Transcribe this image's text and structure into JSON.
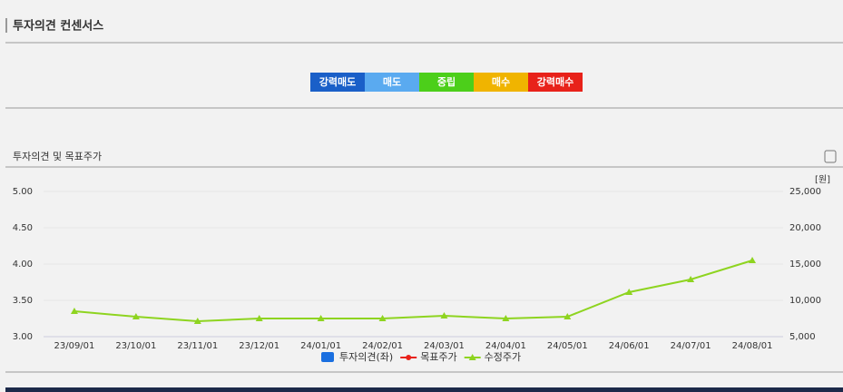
{
  "header": {
    "title": "투자의견 컨센서스"
  },
  "opinion_scale": [
    {
      "label": "강력매도",
      "color": "#1a5fc8"
    },
    {
      "label": "매도",
      "color": "#5aaaf0"
    },
    {
      "label": "중립",
      "color": "#4ccf1a"
    },
    {
      "label": "매수",
      "color": "#f0b400"
    },
    {
      "label": "강력매수",
      "color": "#e8221a"
    }
  ],
  "chart_data": {
    "type": "line",
    "title": "투자의견 및 목표주가",
    "y2_unit": "[원]",
    "categories": [
      "23/09/01",
      "23/10/01",
      "23/11/01",
      "23/12/01",
      "24/01/01",
      "24/02/01",
      "24/03/01",
      "24/04/01",
      "24/05/01",
      "24/06/01",
      "24/07/01",
      "24/08/01"
    ],
    "ylim": [
      3,
      5
    ],
    "yticks": [
      {
        "value": 3,
        "label": "3.00"
      },
      {
        "value": 3.5,
        "label": "3.50"
      },
      {
        "value": 4,
        "label": "4.00"
      },
      {
        "value": 4.5,
        "label": "4.50"
      },
      {
        "value": 5,
        "label": "5.00"
      }
    ],
    "y2lim": [
      5000,
      25000
    ],
    "y2ticks": [
      {
        "value": 5000,
        "label": "5,000"
      },
      {
        "value": 10000,
        "label": "10,000"
      },
      {
        "value": 15000,
        "label": "15,000"
      },
      {
        "value": 20000,
        "label": "20,000"
      },
      {
        "value": 25000,
        "label": "25,000"
      }
    ],
    "grid": true,
    "other_legend": [
      {
        "name": "투자의견(좌)",
        "color": "#1a6fe0"
      },
      {
        "name": "목표주가",
        "color": "#e8221a"
      }
    ],
    "series": [
      {
        "name": "수정주가",
        "color": "#8ed420",
        "axis": "y2",
        "values": [
          8500,
          7750,
          7125,
          7500,
          7500,
          7500,
          7875,
          7500,
          7750,
          11125,
          12875,
          15500
        ]
      }
    ]
  }
}
